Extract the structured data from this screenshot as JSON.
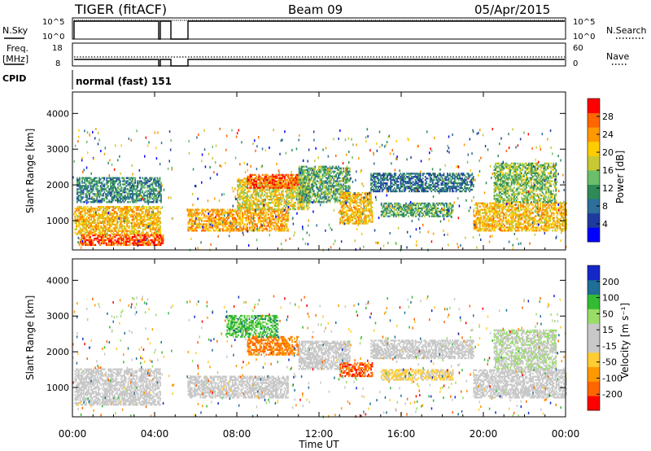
{
  "header": {
    "radar": "TIGER (fitACF)",
    "beam": "Beam 09",
    "date": "05/Apr/2015"
  },
  "top_panels": {
    "nsky_label": "N.Sky",
    "nsky_ticks": [
      "10^5",
      "10^0"
    ],
    "nsearch_label": "N.Search",
    "nsearch_ticks": [
      "10^5",
      "10^0"
    ],
    "freq_label": "Freq.",
    "freq_unit": "[MHz]",
    "freq_ticks": [
      "18",
      "8"
    ],
    "nave_label": "Nave",
    "nave_ticks": [
      "60",
      "0"
    ],
    "cpid_label": "CPID",
    "cpid_value": "normal (fast) 151"
  },
  "chart_data": [
    {
      "type": "heatmap",
      "title": "",
      "xlabel": "Time UT",
      "ylabel": "Slant Range [km]",
      "xlim": [
        0,
        24
      ],
      "ylim": [
        180,
        4600
      ],
      "x_ticks": [
        "00:00",
        "04:00",
        "08:00",
        "12:00",
        "16:00",
        "20:00",
        "00:00"
      ],
      "y_ticks": [
        "1000",
        "2000",
        "3000",
        "4000"
      ],
      "colorbar": {
        "label": "Power [dB]",
        "ticks": [
          "28",
          "24",
          "20",
          "16",
          "12",
          "8",
          "4"
        ],
        "range": [
          0,
          30
        ],
        "colors": [
          "#0000ff",
          "#1e3a9e",
          "#2d6e9a",
          "#2e8b57",
          "#6bbf6b",
          "#c8c832",
          "#ffcc00",
          "#ff9900",
          "#ff6600",
          "#ff0000"
        ]
      },
      "data_gaps_ut": [
        [
          4.45,
          4.6
        ],
        [
          4.9,
          5.55
        ]
      ],
      "echo_regions": [
        {
          "t0": 0.1,
          "t1": 4.3,
          "r0": 600,
          "r1": 1400,
          "power": 20
        },
        {
          "t0": 0.2,
          "t1": 4.3,
          "r0": 1500,
          "r1": 2200,
          "power": 10
        },
        {
          "t0": 0.3,
          "t1": 4.4,
          "r0": 300,
          "r1": 600,
          "power": 26
        },
        {
          "t0": 5.6,
          "t1": 10.5,
          "r0": 700,
          "r1": 1300,
          "power": 22
        },
        {
          "t0": 8.0,
          "t1": 11.5,
          "r0": 1300,
          "r1": 2200,
          "power": 18
        },
        {
          "t0": 8.5,
          "t1": 11.0,
          "r0": 1900,
          "r1": 2300,
          "power": 26
        },
        {
          "t0": 11.0,
          "t1": 13.5,
          "r0": 1500,
          "r1": 2500,
          "power": 12
        },
        {
          "t0": 13.0,
          "t1": 14.6,
          "r0": 900,
          "r1": 1800,
          "power": 20
        },
        {
          "t0": 14.5,
          "t1": 19.5,
          "r0": 1800,
          "r1": 2300,
          "power": 8
        },
        {
          "t0": 15.0,
          "t1": 18.5,
          "r0": 1100,
          "r1": 1500,
          "power": 12
        },
        {
          "t0": 19.5,
          "t1": 24.0,
          "r0": 700,
          "r1": 1500,
          "power": 20
        },
        {
          "t0": 20.5,
          "t1": 23.5,
          "r0": 1500,
          "r1": 2600,
          "power": 14
        }
      ]
    },
    {
      "type": "heatmap",
      "title": "",
      "xlabel": "Time UT",
      "ylabel": "Slant Range [km]",
      "xlim": [
        0,
        24
      ],
      "ylim": [
        180,
        4600
      ],
      "x_ticks": [
        "00:00",
        "04:00",
        "08:00",
        "12:00",
        "16:00",
        "20:00",
        "00:00"
      ],
      "y_ticks": [
        "1000",
        "2000",
        "3000",
        "4000"
      ],
      "colorbar": {
        "label": "Velocity [m s⁻¹]",
        "ticks": [
          "200",
          "100",
          "50",
          "15",
          "-15",
          "-50",
          "-100",
          "-200"
        ],
        "range": [
          -250,
          250
        ],
        "colors": [
          "#ff0000",
          "#ff6600",
          "#ff9900",
          "#ffcc33",
          "#c8c8c8",
          "#c8c8c8",
          "#99dd66",
          "#33bb33",
          "#1e6e96",
          "#1428c8"
        ]
      },
      "data_gaps_ut": [
        [
          4.45,
          4.6
        ],
        [
          4.9,
          5.55
        ]
      ],
      "echo_regions": [
        {
          "t0": 0.1,
          "t1": 4.3,
          "r0": 500,
          "r1": 1500,
          "velocity": 0
        },
        {
          "t0": 5.6,
          "t1": 10.5,
          "r0": 700,
          "r1": 1300,
          "velocity": 0
        },
        {
          "t0": 8.5,
          "t1": 11.0,
          "r0": 1900,
          "r1": 2400,
          "velocity": -150
        },
        {
          "t0": 7.5,
          "t1": 10.0,
          "r0": 2400,
          "r1": 3000,
          "velocity": 120
        },
        {
          "t0": 11.0,
          "t1": 13.5,
          "r0": 1500,
          "r1": 2300,
          "velocity": 0
        },
        {
          "t0": 13.0,
          "t1": 14.6,
          "r0": 1300,
          "r1": 1700,
          "velocity": -180
        },
        {
          "t0": 14.5,
          "t1": 19.5,
          "r0": 1800,
          "r1": 2300,
          "velocity": 0
        },
        {
          "t0": 15.0,
          "t1": 18.5,
          "r0": 1200,
          "r1": 1500,
          "velocity": -60
        },
        {
          "t0": 19.5,
          "t1": 24.0,
          "r0": 700,
          "r1": 1500,
          "velocity": 0
        },
        {
          "t0": 20.5,
          "t1": 23.5,
          "r0": 1500,
          "r1": 2600,
          "velocity": 40
        }
      ]
    }
  ]
}
